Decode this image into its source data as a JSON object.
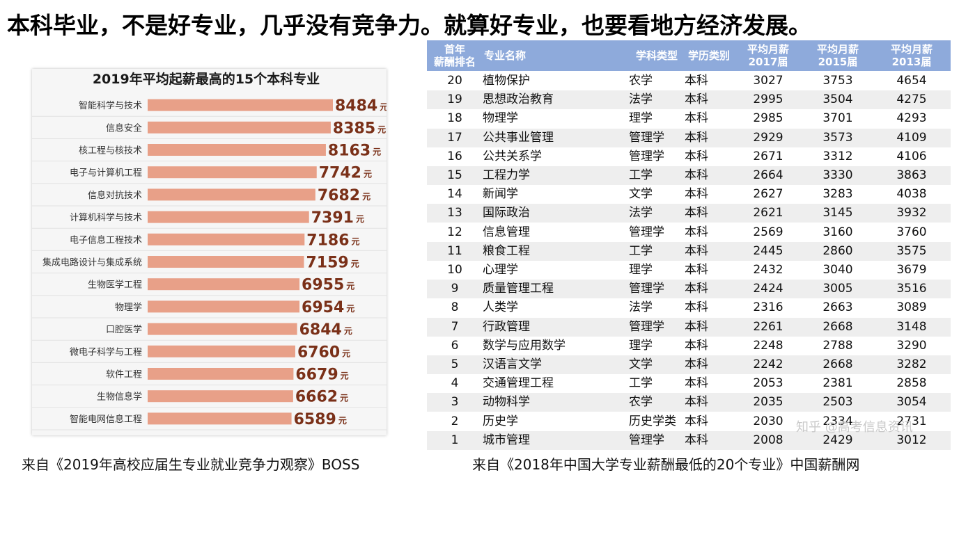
{
  "headline": "本科毕业，不是好专业，几乎没有竞争力。就算好专业，也要看地方经济发展。",
  "left": {
    "caption": "来自《2019年高校应届生专业就业竞争力观察》BOSS",
    "chart_data": {
      "type": "bar",
      "orientation": "horizontal",
      "title": "2019年平均起薪最高的15个本科专业",
      "unit": "元",
      "bar_color": "#e8a088",
      "value_color": "#7a3018",
      "categories": [
        "智能科学与技术",
        "信息安全",
        "核工程与核技术",
        "电子与计算机工程",
        "信息对抗技术",
        "计算机科学与技术",
        "电子信息工程技术",
        "集成电路设计与集成系统",
        "生物医学工程",
        "物理学",
        "口腔医学",
        "微电子科学与工程",
        "软件工程",
        "生物信息学",
        "智能电网信息工程"
      ],
      "values": [
        8484,
        8385,
        8163,
        7742,
        7682,
        7391,
        7186,
        7159,
        6955,
        6954,
        6844,
        6760,
        6679,
        6662,
        6589
      ]
    }
  },
  "right": {
    "caption": "来自《2018年中国大学专业薪酬最低的20个专业》中国薪酬网",
    "watermark": "知乎 @高考信息资讯",
    "header_color": "#8eaadb",
    "columns": [
      {
        "line1": "首年",
        "line2": "薪酬排名"
      },
      {
        "line1": "专业名称",
        "line2": ""
      },
      {
        "line1": "学科类型",
        "line2": ""
      },
      {
        "line1": "学历类别",
        "line2": ""
      },
      {
        "line1": "平均月薪",
        "line2": "2017届"
      },
      {
        "line1": "平均月薪",
        "line2": "2015届"
      },
      {
        "line1": "平均月薪",
        "line2": "2013届"
      }
    ],
    "chart_data": {
      "type": "table",
      "rows": [
        [
          "20",
          "植物保护",
          "农学",
          "本科",
          "3027",
          "3753",
          "4654"
        ],
        [
          "19",
          "思想政治教育",
          "法学",
          "本科",
          "2995",
          "3504",
          "4275"
        ],
        [
          "18",
          "物理学",
          "理学",
          "本科",
          "2985",
          "3701",
          "4293"
        ],
        [
          "17",
          "公共事业管理",
          "管理学",
          "本科",
          "2929",
          "3573",
          "4109"
        ],
        [
          "16",
          "公共关系学",
          "管理学",
          "本科",
          "2671",
          "3312",
          "4106"
        ],
        [
          "15",
          "工程力学",
          "工学",
          "本科",
          "2664",
          "3330",
          "3863"
        ],
        [
          "14",
          "新闻学",
          "文学",
          "本科",
          "2627",
          "3283",
          "4038"
        ],
        [
          "13",
          "国际政治",
          "法学",
          "本科",
          "2621",
          "3145",
          "3932"
        ],
        [
          "12",
          "信息管理",
          "管理学",
          "本科",
          "2569",
          "3160",
          "3760"
        ],
        [
          "11",
          "粮食工程",
          "工学",
          "本科",
          "2445",
          "2860",
          "3575"
        ],
        [
          "10",
          "心理学",
          "理学",
          "本科",
          "2432",
          "3040",
          "3679"
        ],
        [
          "9",
          "质量管理工程",
          "管理学",
          "本科",
          "2424",
          "3005",
          "3516"
        ],
        [
          "8",
          "人类学",
          "法学",
          "本科",
          "2316",
          "2663",
          "3089"
        ],
        [
          "7",
          "行政管理",
          "管理学",
          "本科",
          "2261",
          "2668",
          "3148"
        ],
        [
          "6",
          "数学与应用数学",
          "理学",
          "本科",
          "2248",
          "2788",
          "3290"
        ],
        [
          "5",
          "汉语言文学",
          "文学",
          "本科",
          "2242",
          "2668",
          "3282"
        ],
        [
          "4",
          "交通管理工程",
          "工学",
          "本科",
          "2053",
          "2381",
          "2858"
        ],
        [
          "3",
          "动物科学",
          "农学",
          "本科",
          "2035",
          "2503",
          "3054"
        ],
        [
          "2",
          "历史学",
          "历史学类",
          "本科",
          "2030",
          "2334",
          "2731"
        ],
        [
          "1",
          "城市管理",
          "管理学",
          "本科",
          "2008",
          "2429",
          "3012"
        ]
      ]
    }
  }
}
